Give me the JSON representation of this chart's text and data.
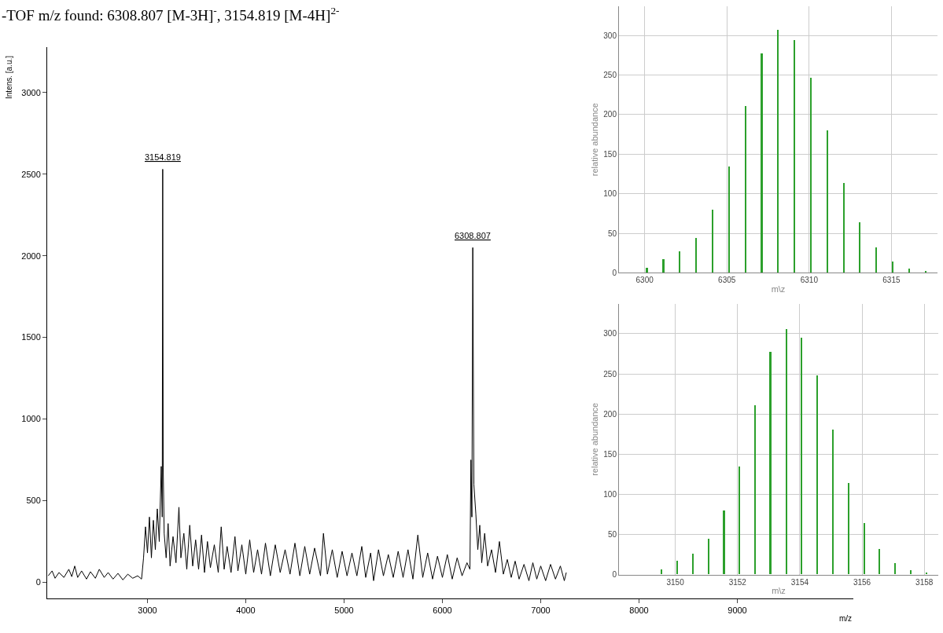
{
  "chart_data": [
    {
      "type": "line",
      "title": "-TOF m/z found: 6308.807 [M-3H]$^{-}$, 3154.819 [M-4H]$^{2-}$",
      "xlabel": "m/z",
      "ylabel": "Intens. [a.u.]",
      "color": "#000000",
      "x": [
        1990,
        2030,
        2060,
        2100,
        2150,
        2200,
        2230,
        2260,
        2290,
        2330,
        2380,
        2420,
        2470,
        2510,
        2560,
        2600,
        2650,
        2700,
        2750,
        2800,
        2850,
        2900,
        2940,
        2960,
        2980,
        3000,
        3020,
        3040,
        3060,
        3080,
        3100,
        3120,
        3140,
        3150,
        3155,
        3160,
        3170,
        3190,
        3210,
        3230,
        3260,
        3290,
        3320,
        3340,
        3370,
        3400,
        3430,
        3460,
        3490,
        3520,
        3550,
        3580,
        3610,
        3640,
        3680,
        3720,
        3750,
        3780,
        3810,
        3850,
        3890,
        3920,
        3960,
        4000,
        4040,
        4080,
        4120,
        4160,
        4200,
        4250,
        4300,
        4350,
        4400,
        4450,
        4500,
        4550,
        4600,
        4650,
        4700,
        4760,
        4790,
        4830,
        4880,
        4930,
        4980,
        5030,
        5080,
        5130,
        5180,
        5220,
        5270,
        5300,
        5350,
        5400,
        5450,
        5500,
        5550,
        5600,
        5650,
        5700,
        5750,
        5800,
        5850,
        5900,
        5950,
        6000,
        6050,
        6100,
        6150,
        6200,
        6250,
        6280,
        6290,
        6300,
        6309,
        6320,
        6340,
        6360,
        6380,
        6400,
        6430,
        6460,
        6500,
        6540,
        6580,
        6620,
        6660,
        6700,
        6740,
        6780,
        6830,
        6880,
        6920,
        6960,
        7000,
        7050,
        7100,
        7150,
        7200,
        7240,
        7260
      ],
      "values": [
        40,
        70,
        25,
        60,
        30,
        80,
        35,
        100,
        30,
        70,
        20,
        65,
        25,
        80,
        30,
        60,
        20,
        55,
        15,
        50,
        25,
        40,
        20,
        150,
        340,
        180,
        400,
        150,
        380,
        200,
        450,
        250,
        710,
        400,
        2530,
        700,
        300,
        150,
        360,
        100,
        280,
        120,
        460,
        150,
        300,
        80,
        350,
        100,
        260,
        80,
        290,
        60,
        250,
        90,
        230,
        60,
        340,
        80,
        220,
        60,
        280,
        70,
        230,
        50,
        260,
        60,
        200,
        50,
        240,
        40,
        230,
        60,
        200,
        50,
        240,
        40,
        220,
        50,
        210,
        40,
        300,
        50,
        200,
        30,
        190,
        40,
        180,
        40,
        220,
        30,
        180,
        10,
        200,
        40,
        170,
        30,
        190,
        30,
        200,
        20,
        290,
        30,
        180,
        20,
        160,
        30,
        170,
        20,
        150,
        40,
        120,
        80,
        750,
        400,
        2050,
        600,
        420,
        200,
        350,
        120,
        300,
        100,
        200,
        60,
        250,
        50,
        140,
        30,
        130,
        20,
        110,
        10,
        120,
        20,
        100,
        10,
        110,
        20,
        100,
        10,
        60
      ],
      "xlim": [
        1980,
        10180
      ],
      "ylim": [
        -100,
        3280
      ],
      "xticks": [
        3000,
        4000,
        5000,
        6000,
        7000,
        8000,
        9000
      ],
      "yticks": [
        0,
        500,
        1000,
        1500,
        2000,
        2500,
        3000
      ],
      "grid": false,
      "annotations": [
        {
          "text": "3154.819",
          "x": 3155,
          "y": 2530
        },
        {
          "text": "6308.807",
          "x": 6309,
          "y": 2050
        }
      ]
    },
    {
      "type": "bar",
      "xlabel": "m\\z",
      "ylabel": "relative abundance",
      "color": "#2ca02c",
      "x": [
        6300.15,
        6301.15,
        6302.14,
        6303.14,
        6304.14,
        6305.13,
        6306.13,
        6307.13,
        6308.12,
        6309.12,
        6310.11,
        6311.11,
        6312.11,
        6313.1,
        6314.1,
        6315.1,
        6316.1,
        6317.1
      ],
      "values": [
        6,
        17,
        27,
        44,
        80,
        134,
        211,
        277,
        307,
        294,
        247,
        180,
        114,
        64,
        32,
        14,
        5,
        2
      ],
      "xlim": [
        6298.44,
        6317.8
      ],
      "ylim": [
        0,
        337
      ],
      "xticks": [
        6300,
        6305,
        6310,
        6315
      ],
      "yticks": [
        0,
        50,
        100,
        150,
        200,
        250,
        300
      ],
      "grid": true
    },
    {
      "type": "bar",
      "xlabel": "m\\z",
      "ylabel": "relative abundance",
      "color": "#2ca02c",
      "x": [
        3149.57,
        3150.07,
        3150.57,
        3151.07,
        3151.57,
        3152.06,
        3152.56,
        3153.06,
        3153.57,
        3154.07,
        3154.57,
        3155.07,
        3155.57,
        3156.07,
        3156.57,
        3157.07,
        3157.57,
        3158.08
      ],
      "values": [
        6,
        17,
        26,
        44,
        80,
        134,
        211,
        277,
        306,
        295,
        248,
        180,
        114,
        64,
        32,
        14,
        5,
        2
      ],
      "xlim": [
        3148.19,
        3158.45
      ],
      "ylim": [
        0,
        337
      ],
      "xticks": [
        3150,
        3152,
        3154,
        3156,
        3158
      ],
      "yticks": [
        0,
        50,
        100,
        150,
        200,
        250,
        300
      ],
      "grid": true
    }
  ]
}
